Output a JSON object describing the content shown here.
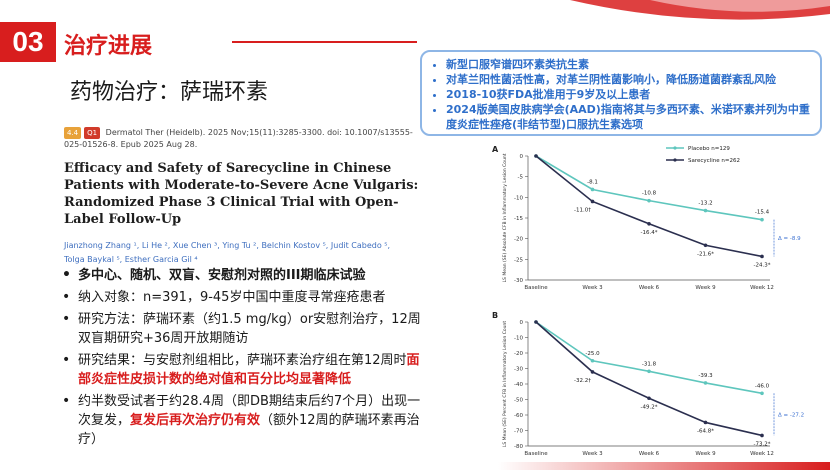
{
  "section": {
    "number": "03",
    "title": "治疗进展",
    "subtitle": "药物治疗：萨瑞环素"
  },
  "highlights": [
    "新型口服窄谱四环素类抗生素",
    "对革兰阳性菌活性高，对革兰阴性菌影响小，降低肠道菌群紊乱风险",
    "2018-10获FDA批准用于9岁及以上患者",
    "2024版美国皮肤病学会(AAD)指南将其与多西环素、米诺环素并列为中重度炎症性痤疮(非结节型)口服抗生素选项"
  ],
  "citation": {
    "badge_if": "4.4",
    "badge_q": "Q1",
    "text": "Dermatol Ther (Heidelb). 2025 Nov;15(11):3285-3300. doi: 10.1007/s13555-025-01526-8. Epub 2025 Aug 28."
  },
  "paper_title": "Efficacy and Safety of Sarecycline in Chinese Patients with Moderate-to-Severe Acne Vulgaris: Randomized Phase 3 Clinical Trial with Open-Label Follow-Up",
  "authors": "Jianzhong Zhang ¹, Li He ², Xue Chen ³, Ying Tu ², Belchin Kostov ⁵, Judit Cabedo ⁵, Tolga Baykal ⁵, Esther Garcia Gil ⁴",
  "bullets": {
    "b1": "多中心、随机、双盲、安慰剂对照的III期临床试验",
    "b2": "纳入对象：n=391，9-45岁中国中重度寻常痤疮患者",
    "b3": "研究方法：萨瑞环素（约1.5 mg/kg）or安慰剂治疗，12周双盲期研究+36周开放期随访",
    "b4_pre": "研究结果：与安慰剂组相比，萨瑞环素治疗组在第12周时",
    "b4_red": "面部炎症性皮损计数的绝对值和百分比均显著降低",
    "b5_pre": "约半数受试者于约28.4周（即DB期结束后约7个月）出现一次复发，",
    "b5_red": "复发后再次治疗仍有效",
    "b5_post": "（额外12周的萨瑞环素再治疗）"
  },
  "colors": {
    "accent": "#d81e1e",
    "blue_text": "#2f6fca",
    "placebo": "#5ec6bd",
    "sarecycline": "#2b2f4f"
  },
  "chart_data": [
    {
      "type": "line",
      "panel": "A",
      "ylabel": "LS Mean (SE) Absolute CFB in Inflammatory Lesion Count",
      "categories": [
        "Baseline",
        "Week 3",
        "Week 6",
        "Week 9",
        "Week 12"
      ],
      "ylim": [
        -30,
        0
      ],
      "yticks": [
        "0",
        "-5",
        "-10",
        "-15",
        "-20",
        "-25",
        "-30"
      ],
      "series": [
        {
          "name": "Placebo n=129",
          "values": [
            0,
            -8.1,
            -10.8,
            -13.2,
            -15.4
          ],
          "labels": [
            "",
            "-8.1",
            "-10.8",
            "-13.2",
            "-15.4"
          ]
        },
        {
          "name": "Sarecycline n=262",
          "values": [
            0,
            -11.0,
            -16.4,
            -21.6,
            -24.3
          ],
          "labels": [
            "",
            "-11.0†",
            "-16.4*",
            "-21.6*",
            "-24.3*"
          ]
        }
      ],
      "annotation": "Δ = -8.9",
      "legend_position": "top-right"
    },
    {
      "type": "line",
      "panel": "B",
      "ylabel": "LS Mean (SE) Percent CFB in Inflammatory Lesion Count",
      "categories": [
        "Baseline",
        "Week 3",
        "Week 6",
        "Week 9",
        "Week 12"
      ],
      "ylim": [
        -80,
        0
      ],
      "yticks": [
        "0",
        "-10",
        "-20",
        "-30",
        "-40",
        "-50",
        "-60",
        "-70",
        "-80"
      ],
      "series": [
        {
          "name": "Placebo",
          "values": [
            0,
            -25.0,
            -31.8,
            -39.3,
            -46.0
          ],
          "labels": [
            "",
            "-25.0",
            "-31.8",
            "-39.3",
            "-46.0"
          ]
        },
        {
          "name": "Sarecycline",
          "values": [
            0,
            -32.2,
            -49.2,
            -64.8,
            -73.2
          ],
          "labels": [
            "",
            "-32.2†",
            "-49.2*",
            "-64.8*",
            "-73.2*"
          ]
        }
      ],
      "annotation": "Δ = -27.2"
    }
  ]
}
